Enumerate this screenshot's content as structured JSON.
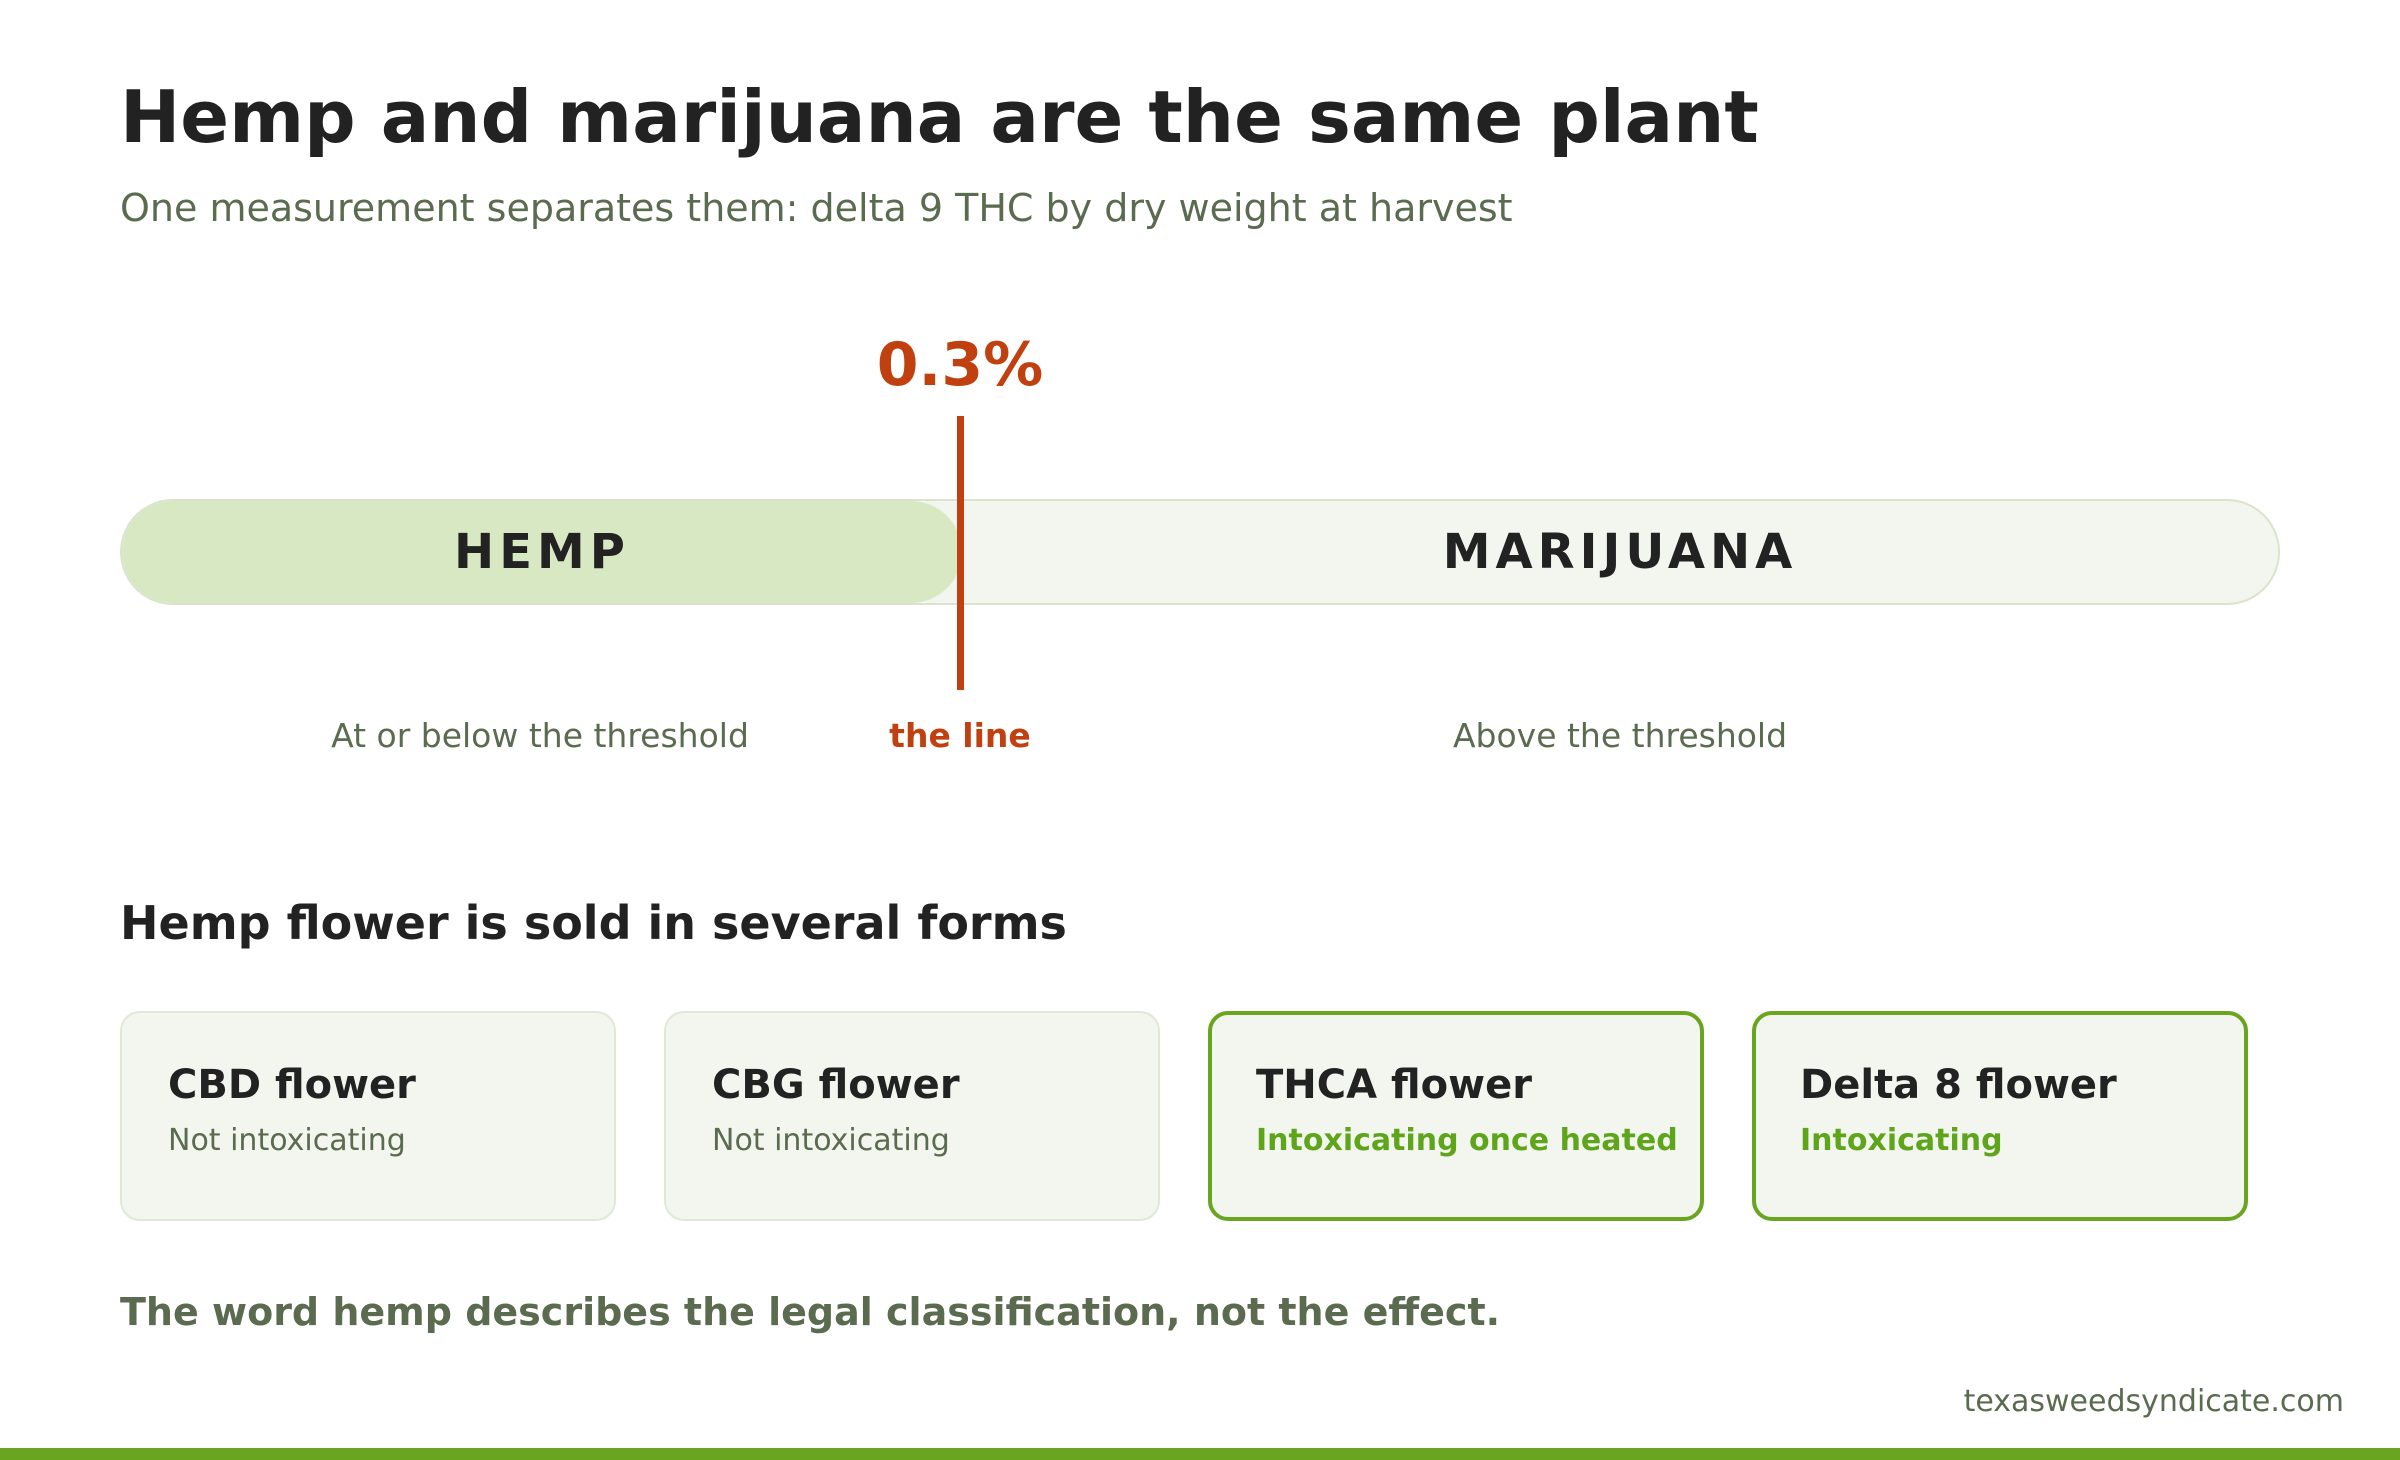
{
  "header": {
    "title": "Hemp and marijuana are the same plant",
    "subtitle": "One measurement separates them: delta 9 THC by dry weight at harvest"
  },
  "threshold": {
    "value_label": "0.3%",
    "line_label": "the line",
    "segments": {
      "hemp": "HEMP",
      "marijuana": "MARIJUANA"
    },
    "below_label": "At or below the threshold",
    "above_label": "Above the threshold"
  },
  "forms": {
    "heading": "Hemp flower is sold in several forms",
    "cards": [
      {
        "title": "CBD flower",
        "status": "Not intoxicating"
      },
      {
        "title": "CBG flower",
        "status": "Not intoxicating"
      },
      {
        "title": "THCA flower",
        "status": "Intoxicating once heated"
      },
      {
        "title": "Delta 8 flower",
        "status": "Intoxicating"
      }
    ]
  },
  "footnote": "The word hemp describes the legal classification, not the effect.",
  "site": "texasweedsyndicate.com",
  "colors": {
    "accent_green": "#6aa51f",
    "threshold_red": "#c0400f",
    "hemp_fill": "#d8e8c3",
    "marijuana_fill": "#f3f6ee"
  }
}
